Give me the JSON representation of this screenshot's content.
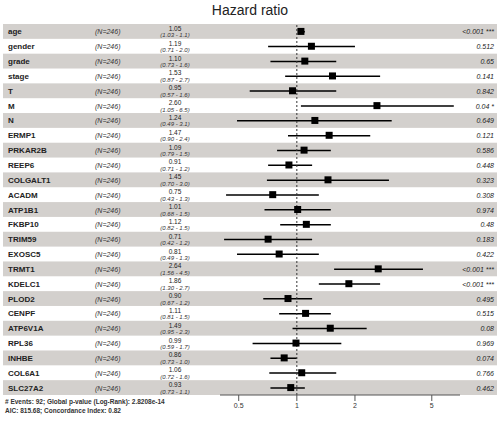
{
  "chart_data": {
    "type": "forest",
    "title": "Hazard ratio",
    "categories": [
      "age",
      "gender",
      "grade",
      "stage",
      "T",
      "M",
      "N",
      "ERMP1",
      "PRKAR2B",
      "REEP6",
      "COLGALT1",
      "ACADM",
      "ATP1B1",
      "FKBP10",
      "TRIM59",
      "EXOSC5",
      "TRMT1",
      "KDELC1",
      "PLOD2",
      "CENPF",
      "ATP6V1A",
      "RPL36",
      "INHBE",
      "COL6A1",
      "SLC27A2"
    ],
    "n_labels": [
      "(N=246)",
      "(N=246)",
      "(N=246)",
      "(N=246)",
      "(N=246)",
      "(N=246)",
      "(N=246)",
      "(N=246)",
      "(N=246)",
      "(N=246)",
      "(N=246)",
      "(N=246)",
      "(N=246)",
      "(N=246)",
      "(N=246)",
      "(N=246)",
      "(N=246)",
      "(N=246)",
      "(N=246)",
      "(N=246)",
      "(N=246)",
      "(N=246)",
      "(N=246)",
      "(N=246)",
      "(N=246)"
    ],
    "values": [
      1.05,
      1.19,
      1.1,
      1.53,
      0.95,
      2.6,
      1.24,
      1.47,
      1.09,
      0.91,
      1.45,
      0.75,
      1.01,
      1.12,
      0.71,
      0.81,
      2.64,
      1.86,
      0.9,
      1.11,
      1.49,
      0.99,
      0.86,
      1.06,
      0.93
    ],
    "value_labels": [
      "1.05",
      "1.19",
      "1.10",
      "1.53",
      "0.95",
      "2.60",
      "1.24",
      "1.47",
      "1.09",
      "0.91",
      "1.45",
      "0.75",
      "1.01",
      "1.12",
      "0.71",
      "0.81",
      "2.64",
      "1.86",
      "0.90",
      "1.11",
      "1.49",
      "0.99",
      "0.86",
      "1.06",
      "0.93"
    ],
    "lower": [
      1.03,
      0.71,
      0.73,
      0.87,
      0.57,
      1.05,
      0.49,
      0.9,
      0.79,
      0.71,
      0.7,
      0.43,
      0.68,
      0.82,
      0.42,
      0.49,
      1.56,
      1.3,
      0.67,
      0.81,
      0.95,
      0.59,
      0.73,
      0.72,
      0.73
    ],
    "upper": [
      1.1,
      2.0,
      1.6,
      2.7,
      1.6,
      6.5,
      3.1,
      2.4,
      1.5,
      1.2,
      3.0,
      1.3,
      1.5,
      1.5,
      1.2,
      1.3,
      4.5,
      2.7,
      1.2,
      1.5,
      2.3,
      1.7,
      1.0,
      1.6,
      1.1
    ],
    "ci_labels": [
      "(1.03 - 1.1)",
      "(0.71 - 2.0)",
      "(0.73 - 1.6)",
      "(0.87 - 2.7)",
      "(0.57 - 1.6)",
      "(1.05 - 6.5)",
      "(0.49 - 3.1)",
      "(0.90 - 2.4)",
      "(0.79 - 1.5)",
      "(0.71 - 1.2)",
      "(0.70 - 3.0)",
      "(0.43 - 1.3)",
      "(0.68 - 1.5)",
      "(0.82 - 1.5)",
      "(0.42 - 1.2)",
      "(0.49 - 1.3)",
      "(1.56 - 4.5)",
      "(1.30 - 2.7)",
      "(0.67 - 1.2)",
      "(0.81 - 1.5)",
      "(0.95 - 2.3)",
      "(0.59 - 1.7)",
      "(0.73 - 1.0)",
      "(0.72 - 1.6)",
      "(0.73 - 1.1)"
    ],
    "p_labels": [
      "<0.001 ***",
      "0.512",
      "0.65",
      "0.141",
      "0.842",
      "0.04 *",
      "0.649",
      "0.121",
      "0.586",
      "0.448",
      "0.323",
      "0.308",
      "0.974",
      "0.48",
      "0.183",
      "0.422",
      "<0.001 ***",
      "<0.001 ***",
      "0.495",
      "0.515",
      "0.08",
      "0.969",
      "0.074",
      "0.766",
      "0.462"
    ],
    "reference": 1,
    "xlim": [
      0.4,
      7
    ],
    "xticks": [
      0.5,
      1,
      2,
      5
    ],
    "log": "x",
    "marker": "square",
    "color": "#000000",
    "footnotes": [
      "# Events: 92; Global p-value (Log-Rank): 2.8208e-14",
      "AIC: 815.68; Concordance Index: 0.82"
    ]
  }
}
